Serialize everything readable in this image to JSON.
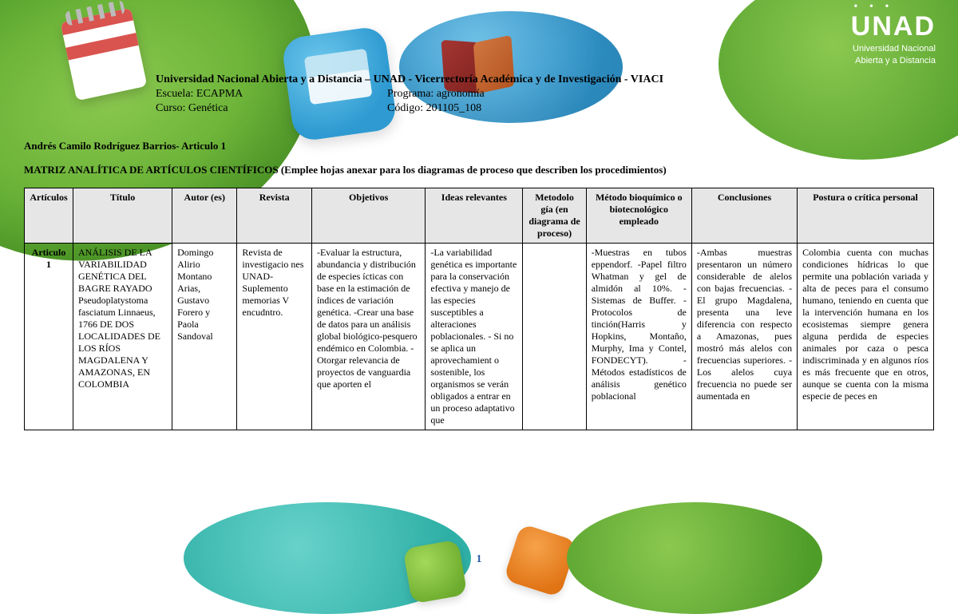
{
  "logo": {
    "name": "UNAD",
    "sub1": "Universidad Nacional",
    "sub2": "Abierta y a Distancia"
  },
  "header": {
    "title": "Universidad Nacional Abierta y a Distancia – UNAD - Vicerrectoría Académica y de Investigación - VIACI",
    "escuela": "Escuela: ECAPMA",
    "programa": "Programa: agronomía",
    "curso": "Curso: Genética",
    "codigo": "Código: 201105_108"
  },
  "author_line": "Andrés Camilo Rodríguez Barrios- Articulo 1",
  "matrix_title": "MATRIZ ANALÍTICA DE ARTÍCULOS CIENTÍFICOS (Emplee hojas anexar para los diagramas de proceso que describen los procedimientos)",
  "columns": [
    "Artículos",
    "Título",
    "Autor (es)",
    "Revista",
    "Objetivos",
    "Ideas relevantes",
    "Metodolo gía (en diagrama de proceso)",
    "Método bioquímico o biotecnológico empleado",
    "Conclusiones",
    "Postura o crítica personal"
  ],
  "row": {
    "articulo": "Articulo 1",
    "titulo": "ANÁLISIS DE LA VARIABILIDAD GENÉTICA DEL BAGRE RAYADO Pseudoplatystoma fasciatum Linnaeus, 1766 DE DOS LOCALIDADES DE LOS RÍOS MAGDALENA Y AMAZONAS, EN COLOMBIA",
    "autor": "Domingo Alirio Montano Arias, Gustavo Forero y Paola Sandoval",
    "revista": "Revista de investigacio nes UNAD- Suplemento memorias V encudntro.",
    "objetivos": "-Evaluar la estructura, abundancia y distribución de especies ícticas con base en la estimación de índices de variación genética. -Crear una base de datos para un análisis global biológico-pesquero endémico en Colombia. -Otorgar relevancia de proyectos de vanguardia que aporten el",
    "ideas": "-La variabilidad genética es importante para la conservación efectiva y manejo de las especies susceptibles a alteraciones poblacionales. - Si no se aplica un aprovechamient o sostenible, los organismos se verán obligados a entrar en un proceso adaptativo que",
    "metodologia": "",
    "metodo": "-Muestras en tubos eppendorf. -Papel filtro Whatman y gel de almidón al 10%. -Sistemas de Buffer. -Protocolos de tinción(Harris y Hopkins, Montaño, Murphy, Ima y Contel, FONDECYT). -Métodos estadísticos de análisis genético poblacional",
    "conclusiones": "-Ambas muestras presentaron un número considerable de alelos con bajas frecuencias. -El grupo Magdalena, presenta una leve diferencia con respecto a Amazonas, pues mostró más alelos con frecuencias superiores. -Los alelos cuya frecuencia no puede ser aumentada en",
    "postura": "Colombia cuenta con muchas condiciones hídricas lo que permite una población variada y alta de peces para el consumo humano, teniendo en cuenta que la intervención humana en los ecosistemas siempre genera alguna perdida de especies animales por caza o pesca indiscriminada y en algunos ríos es más frecuente que en otros, aunque se cuenta con la misma especie de peces en"
  },
  "page_number": "1"
}
